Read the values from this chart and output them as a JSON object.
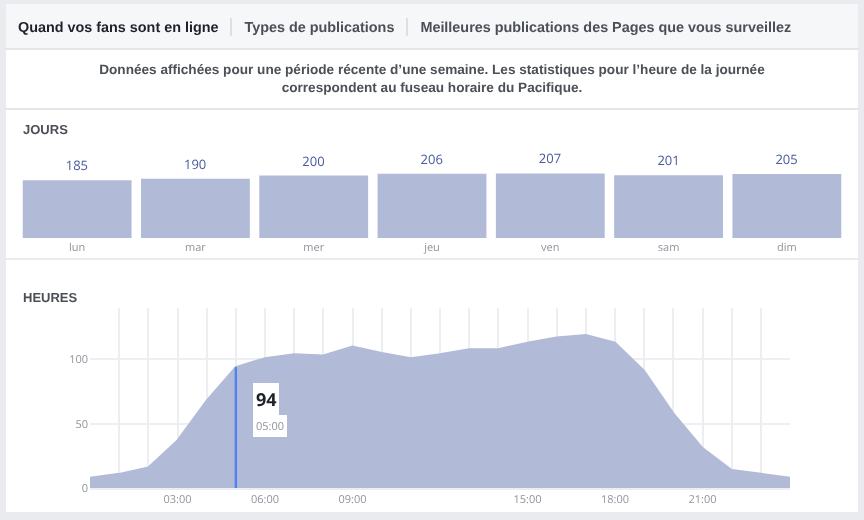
{
  "chart_data": [
    {
      "type": "other",
      "title": "Données affichées pour une période récente d’une semaine. Les statistiques pour l’heure de la journée correspondent au fuseau horaire du Pacifique.",
      "annotations": [
        "Quand vos fans sont en ligne",
        "Types de publications",
        "Meilleures publications des Pages que vous surveillez"
      ]
    },
    {
      "type": "bar",
      "title": "JOURS",
      "categories": [
        "lun",
        "mar",
        "mer",
        "jeu",
        "ven",
        "sam",
        "dim"
      ],
      "values": [
        185,
        190,
        200,
        206,
        207,
        201,
        205
      ],
      "color": "#b1bbd8",
      "data_labels": true,
      "grid": false,
      "legend": false
    },
    {
      "type": "area",
      "title": "HEURES",
      "x": [
        0,
        1,
        2,
        3,
        4,
        5,
        6,
        7,
        8,
        9,
        10,
        11,
        12,
        13,
        14,
        15,
        16,
        17,
        18,
        19,
        20,
        21,
        22,
        23,
        24
      ],
      "series": [
        {
          "color": "#b1bbd8",
          "values": [
            8,
            11,
            16,
            37,
            68,
            94,
            101,
            104,
            103,
            110,
            105,
            101,
            104,
            108,
            108,
            113,
            117,
            119,
            113,
            91,
            58,
            31,
            14,
            11,
            8
          ]
        }
      ],
      "xlim": [
        0,
        24
      ],
      "ylim": [
        0,
        140
      ],
      "xticks": [
        {
          "value": 1,
          "label": null
        },
        {
          "value": 2,
          "label": null
        },
        {
          "value": 3,
          "label": "03:00"
        },
        {
          "value": 4,
          "label": null
        },
        {
          "value": 5,
          "label": null
        },
        {
          "value": 6,
          "label": "06:00"
        },
        {
          "value": 7,
          "label": null
        },
        {
          "value": 8,
          "label": null
        },
        {
          "value": 9,
          "label": "09:00"
        },
        {
          "value": 10,
          "label": null
        },
        {
          "value": 11,
          "label": null
        },
        {
          "value": 12,
          "label": null
        },
        {
          "value": 13,
          "label": null
        },
        {
          "value": 14,
          "label": null
        },
        {
          "value": 15,
          "label": "15:00"
        },
        {
          "value": 16,
          "label": null
        },
        {
          "value": 17,
          "label": null
        },
        {
          "value": 18,
          "label": "18:00"
        },
        {
          "value": 19,
          "label": null
        },
        {
          "value": 20,
          "label": null
        },
        {
          "value": 21,
          "label": "21:00"
        },
        {
          "value": 22,
          "label": null
        },
        {
          "value": 23,
          "label": null
        }
      ],
      "yticks": [
        0,
        50,
        100
      ],
      "grid": true,
      "legend": false,
      "ref_lines": [
        {
          "axis": "x",
          "value": 5,
          "color": "#4f82f0"
        }
      ],
      "annotations": [
        "94",
        "05:00"
      ]
    }
  ]
}
